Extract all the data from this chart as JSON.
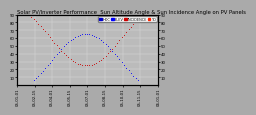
{
  "title": "Solar PV/Inverter Performance  Sun Altitude Angle & Sun Incidence Angle on PV Panels",
  "title_fontsize": 3.8,
  "legend_labels": [
    "HOC",
    "ELEV",
    "INCIDENCE",
    "TD"
  ],
  "legend_colors": [
    "#0000cc",
    "#0000ff",
    "#cc0000",
    "#ff2200"
  ],
  "background_color": "#aaaaaa",
  "plot_bg": "#bbbbbb",
  "grid_color": "#dddddd",
  "ylim": [
    0,
    90
  ],
  "y_ticks": [
    10,
    20,
    30,
    40,
    50,
    60,
    70,
    80,
    90
  ],
  "tick_fontsize": 2.8,
  "marker_size": 1.5,
  "n_points": 365,
  "x_tick_positions": [
    0,
    45,
    90,
    135,
    181,
    226,
    272,
    317,
    365
  ],
  "x_ticks_labels": [
    "05-01-01",
    "05-02-15",
    "05-04-01",
    "05-05-15",
    "05-07-01",
    "05-08-15",
    "05-10-01",
    "05-11-15",
    "06-01-01"
  ],
  "right_y_ticks": [
    10,
    20,
    30,
    40,
    50,
    60,
    70,
    80,
    90
  ]
}
